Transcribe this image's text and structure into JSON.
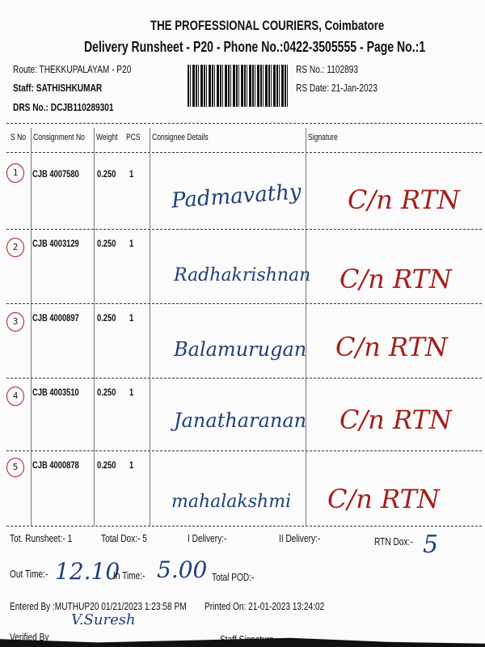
{
  "header": {
    "company": "THE PROFESSIONAL COURIERS, Coimbatore",
    "subtitle": "Delivery Runsheet - P20 - Phone No.:0422-3505555 - Page No.:1",
    "route": "Route: THEKKUPALAYAM - P20",
    "staff": "Staff: SATHISHKUMAR",
    "drs_no": "DRS No.: DCJB110289301",
    "rs_no": "RS No.: 1102893",
    "rs_date": "RS Date: 21-Jan-2023"
  },
  "table": {
    "columns": [
      "S No",
      "Consignment No",
      "Weight",
      "PCS",
      "Consignee Details",
      "Signature"
    ],
    "rows": [
      {
        "sno": "1",
        "consignment": "CJB 4007580",
        "weight": "0.250",
        "pcs": "1",
        "consignee": "Padmavathy",
        "signature": "C/n RTN"
      },
      {
        "sno": "2",
        "consignment": "CJB 4003129",
        "weight": "0.250",
        "pcs": "1",
        "consignee": "Radhakrishnan",
        "signature": "C/n RTN"
      },
      {
        "sno": "3",
        "consignment": "CJB 4000897",
        "weight": "0.250",
        "pcs": "1",
        "consignee": "Balamurugan",
        "signature": "C/n RTN"
      },
      {
        "sno": "4",
        "consignment": "CJB 4003510",
        "weight": "0.250",
        "pcs": "1",
        "consignee": "Janatharanan",
        "signature": "C/n RTN"
      },
      {
        "sno": "5",
        "consignment": "CJB 4000878",
        "weight": "0.250",
        "pcs": "1",
        "consignee": "mahalakshmi",
        "signature": "C/n RTN"
      }
    ]
  },
  "footer": {
    "tot_runsheet": "Tot. Runsheet:- 1",
    "total_dox": "Total Dox:-   5",
    "i_delivery": "I Delivery:-",
    "ii_delivery": "II Delivery:-",
    "rtn_dox_label": "RTN Dox:-",
    "rtn_dox_value": "5",
    "out_time_label": "Out Time:-",
    "out_time_value": "12.10",
    "in_time_label": "In Time:-",
    "in_time_value": "5.00",
    "total_pod": "Total POD:-",
    "entered_by": "Entered By :MUTHUP20 01/21/2023 1:23:58 PM",
    "printed_on": "Printed On: 21-01-2023 13:24:02",
    "verified_by": "Verified By",
    "verified_signature": "V.Suresh",
    "staff_signature": "Staff Signature"
  }
}
